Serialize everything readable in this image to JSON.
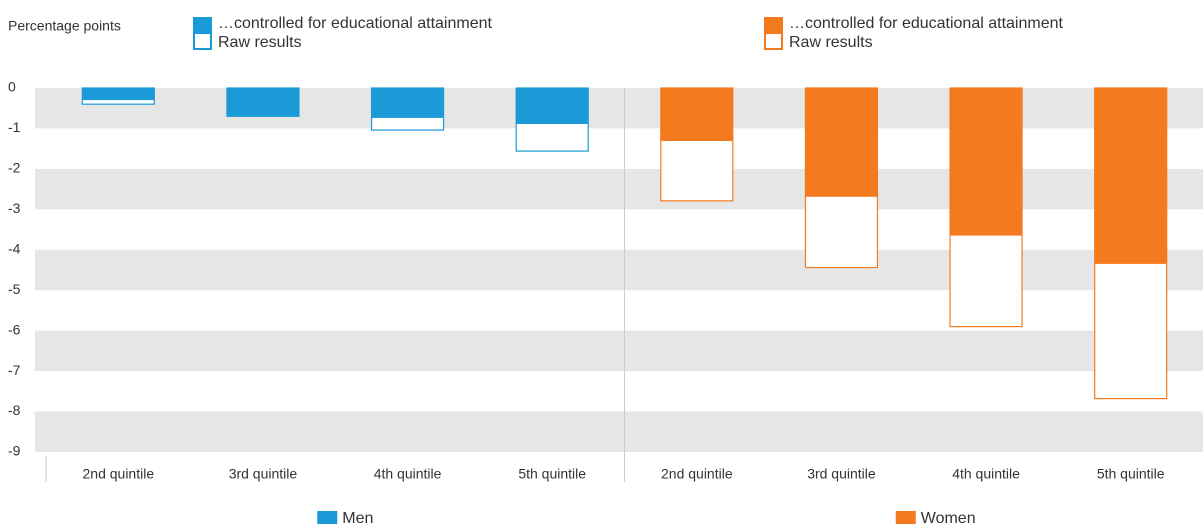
{
  "chart_data": {
    "type": "bar",
    "ylabel": "Percentage points",
    "ylim": [
      -9.1,
      0
    ],
    "yticks": [
      0,
      -1,
      -2,
      -3,
      -4,
      -5,
      -6,
      -7,
      -8,
      -9
    ],
    "grid": "bands",
    "groups": [
      {
        "name": "Men",
        "color": "#1a9ad6",
        "categories": [
          "2nd quintile",
          "3rd quintile",
          "4th quintile",
          "5th quintile"
        ],
        "series": [
          {
            "name": "…controlled for educational attainment",
            "values": [
              -0.3,
              -0.7,
              -0.74,
              -0.89
            ]
          },
          {
            "name": "Raw results",
            "values": [
              -0.4,
              -0.7,
              -1.04,
              -1.56
            ]
          }
        ]
      },
      {
        "name": "Women",
        "color": "#f47a20",
        "categories": [
          "2nd quintile",
          "3rd quintile",
          "4th quintile",
          "5th quintile"
        ],
        "series": [
          {
            "name": "…controlled for educational attainment",
            "values": [
              -1.31,
              -2.69,
              -3.65,
              -4.35
            ]
          },
          {
            "name": "Raw results",
            "values": [
              -2.79,
              -4.44,
              -5.9,
              -7.68
            ]
          }
        ]
      }
    ]
  }
}
